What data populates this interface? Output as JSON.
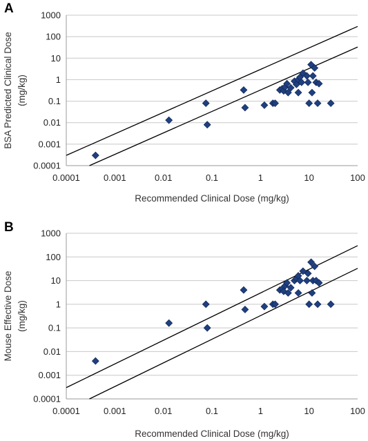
{
  "chart_data": [
    {
      "type": "scatter",
      "panel_label": "A",
      "xlabel": "Recommended Clinical Dose (mg/kg)",
      "ylabel_lines": [
        "BSA Predicted Clinical  Dose",
        "(mg/kg)"
      ],
      "x_scale": "log",
      "y_scale": "log",
      "xlim": [
        0.0001,
        100
      ],
      "ylim": [
        0.0001,
        1000
      ],
      "x_ticks": [
        "0.0001",
        "0.001",
        "0.01",
        "0.1",
        "1",
        "10",
        "100"
      ],
      "y_ticks": [
        "0.0001",
        "0.001",
        "0.01",
        "0.1",
        "1",
        "10",
        "100",
        "1000"
      ],
      "grid": true,
      "marker_color": "#1f3f7f",
      "reference_lines": [
        {
          "from": [
            0.0001,
            0.0003
          ],
          "to": [
            100,
            300
          ]
        },
        {
          "from": [
            0.0003,
            0.0001
          ],
          "to": [
            100,
            33
          ]
        }
      ],
      "points": [
        [
          0.0004,
          0.0003
        ],
        [
          0.013,
          0.013
        ],
        [
          0.075,
          0.08
        ],
        [
          0.08,
          0.008
        ],
        [
          0.45,
          0.33
        ],
        [
          0.48,
          0.05
        ],
        [
          1.2,
          0.065
        ],
        [
          1.8,
          0.08
        ],
        [
          2.0,
          0.08
        ],
        [
          2.5,
          0.33
        ],
        [
          2.8,
          0.38
        ],
        [
          3.0,
          0.3
        ],
        [
          3.2,
          0.45
        ],
        [
          3.5,
          0.65
        ],
        [
          3.7,
          0.25
        ],
        [
          4.2,
          0.42
        ],
        [
          5.0,
          0.85
        ],
        [
          5.5,
          0.6
        ],
        [
          6.0,
          1.0
        ],
        [
          6.0,
          0.25
        ],
        [
          6.5,
          1.3
        ],
        [
          7.0,
          0.75
        ],
        [
          7.5,
          2.0
        ],
        [
          9.0,
          1.5
        ],
        [
          9.5,
          0.75
        ],
        [
          10.0,
          0.08
        ],
        [
          11.0,
          5.0
        ],
        [
          11.5,
          0.25
        ],
        [
          12.0,
          1.5
        ],
        [
          13.0,
          3.5
        ],
        [
          14.0,
          0.75
        ],
        [
          15.0,
          0.08
        ],
        [
          16.0,
          0.65
        ],
        [
          28.0,
          0.08
        ]
      ]
    },
    {
      "type": "scatter",
      "panel_label": "B",
      "xlabel": "Recommended Clinical Dose (mg/kg)",
      "ylabel_lines": [
        "Mouse Effective Dose",
        "(mg/kg)"
      ],
      "x_scale": "log",
      "y_scale": "log",
      "xlim": [
        0.0001,
        100
      ],
      "ylim": [
        0.0001,
        1000
      ],
      "x_ticks": [
        "0.0001",
        "0.001",
        "0.01",
        "0.1",
        "1",
        "10",
        "100"
      ],
      "y_ticks": [
        "0.0001",
        "0.001",
        "0.01",
        "0.1",
        "1",
        "10",
        "100",
        "1000"
      ],
      "grid": true,
      "marker_color": "#1f3f7f",
      "reference_lines": [
        {
          "from": [
            0.0001,
            0.0003
          ],
          "to": [
            100,
            300
          ]
        },
        {
          "from": [
            0.0003,
            0.0001
          ],
          "to": [
            100,
            33
          ]
        }
      ],
      "points": [
        [
          0.0004,
          0.004
        ],
        [
          0.013,
          0.16
        ],
        [
          0.075,
          1.0
        ],
        [
          0.08,
          0.1
        ],
        [
          0.45,
          4.0
        ],
        [
          0.48,
          0.6
        ],
        [
          1.2,
          0.8
        ],
        [
          1.8,
          1.0
        ],
        [
          2.0,
          1.0
        ],
        [
          2.5,
          4.0
        ],
        [
          2.8,
          4.5
        ],
        [
          3.0,
          3.5
        ],
        [
          3.2,
          6.0
        ],
        [
          3.5,
          8.0
        ],
        [
          3.7,
          3.0
        ],
        [
          4.2,
          5.0
        ],
        [
          5.0,
          10.0
        ],
        [
          5.5,
          12.0
        ],
        [
          6.0,
          16.0
        ],
        [
          6.0,
          3.0
        ],
        [
          6.5,
          10.0
        ],
        [
          7.5,
          25.0
        ],
        [
          9.0,
          10.0
        ],
        [
          9.5,
          20.0
        ],
        [
          10.0,
          1.0
        ],
        [
          11.0,
          60.0
        ],
        [
          11.5,
          3.0
        ],
        [
          12.0,
          10.0
        ],
        [
          13.0,
          40.0
        ],
        [
          14.0,
          10.0
        ],
        [
          15.0,
          1.0
        ],
        [
          16.0,
          8.0
        ],
        [
          28.0,
          1.0
        ]
      ]
    }
  ]
}
